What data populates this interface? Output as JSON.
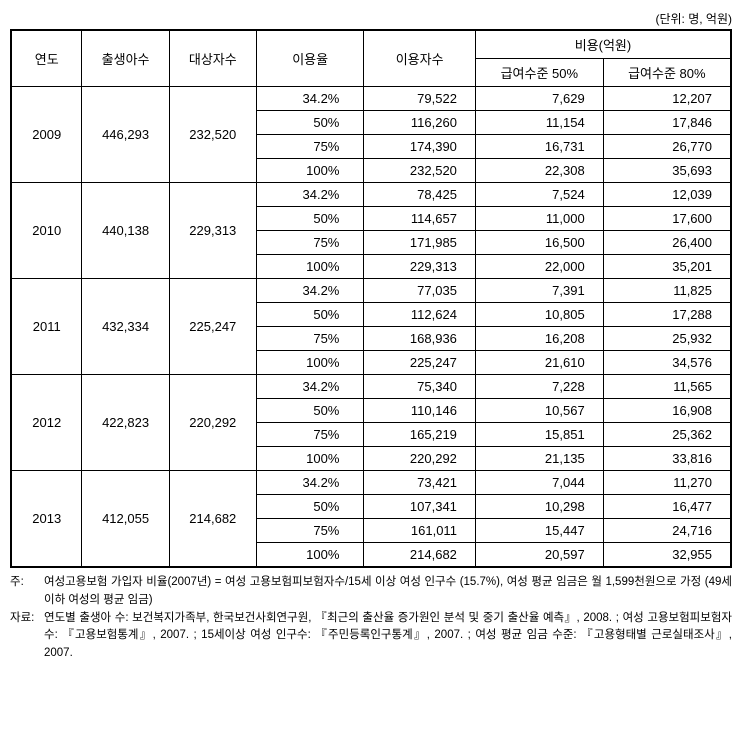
{
  "unit_label": "(단위: 명, 억원)",
  "headers": {
    "year": "연도",
    "births": "출생아수",
    "targets": "대상자수",
    "usage_rate": "이용율",
    "users": "이용자수",
    "cost_group": "비용(억원)",
    "cost_50": "급여수준 50%",
    "cost_80": "급여수준 80%"
  },
  "col_widths": {
    "year": "70",
    "births": "86",
    "targets": "86",
    "rate": "106",
    "users": "110",
    "cost50": "126",
    "cost80": "126"
  },
  "years": [
    {
      "year": "2009",
      "births": "446,293",
      "targets": "232,520",
      "rows": [
        {
          "rate": "34.2%",
          "users": "79,522",
          "c50": "7,629",
          "c80": "12,207"
        },
        {
          "rate": "50%",
          "users": "116,260",
          "c50": "11,154",
          "c80": "17,846"
        },
        {
          "rate": "75%",
          "users": "174,390",
          "c50": "16,731",
          "c80": "26,770"
        },
        {
          "rate": "100%",
          "users": "232,520",
          "c50": "22,308",
          "c80": "35,693"
        }
      ]
    },
    {
      "year": "2010",
      "births": "440,138",
      "targets": "229,313",
      "rows": [
        {
          "rate": "34.2%",
          "users": "78,425",
          "c50": "7,524",
          "c80": "12,039"
        },
        {
          "rate": "50%",
          "users": "114,657",
          "c50": "11,000",
          "c80": "17,600"
        },
        {
          "rate": "75%",
          "users": "171,985",
          "c50": "16,500",
          "c80": "26,400"
        },
        {
          "rate": "100%",
          "users": "229,313",
          "c50": "22,000",
          "c80": "35,201"
        }
      ]
    },
    {
      "year": "2011",
      "births": "432,334",
      "targets": "225,247",
      "rows": [
        {
          "rate": "34.2%",
          "users": "77,035",
          "c50": "7,391",
          "c80": "11,825"
        },
        {
          "rate": "50%",
          "users": "112,624",
          "c50": "10,805",
          "c80": "17,288"
        },
        {
          "rate": "75%",
          "users": "168,936",
          "c50": "16,208",
          "c80": "25,932"
        },
        {
          "rate": "100%",
          "users": "225,247",
          "c50": "21,610",
          "c80": "34,576"
        }
      ]
    },
    {
      "year": "2012",
      "births": "422,823",
      "targets": "220,292",
      "rows": [
        {
          "rate": "34.2%",
          "users": "75,340",
          "c50": "7,228",
          "c80": "11,565"
        },
        {
          "rate": "50%",
          "users": "110,146",
          "c50": "10,567",
          "c80": "16,908"
        },
        {
          "rate": "75%",
          "users": "165,219",
          "c50": "15,851",
          "c80": "25,362"
        },
        {
          "rate": "100%",
          "users": "220,292",
          "c50": "21,135",
          "c80": "33,816"
        }
      ]
    },
    {
      "year": "2013",
      "births": "412,055",
      "targets": "214,682",
      "rows": [
        {
          "rate": "34.2%",
          "users": "73,421",
          "c50": "7,044",
          "c80": "11,270"
        },
        {
          "rate": "50%",
          "users": "107,341",
          "c50": "10,298",
          "c80": "16,477"
        },
        {
          "rate": "75%",
          "users": "161,011",
          "c50": "15,447",
          "c80": "24,716"
        },
        {
          "rate": "100%",
          "users": "214,682",
          "c50": "20,597",
          "c80": "32,955"
        }
      ]
    }
  ],
  "notes": {
    "note_label": "주:",
    "note_text": "여성고용보험 가입자 비율(2007년) = 여성 고용보험피보험자수/15세 이상 여성 인구수 (15.7%), 여성 평균 임금은 월 1,599천원으로 가정 (49세 이하 여성의 평균 임금)",
    "source_label": "자료:",
    "source_text": "연도별 출생아 수: 보건복지가족부, 한국보건사회연구원, 『최근의 출산율 증가원인 분석 및 중기 출산율 예측』, 2008. ; 여성 고용보험피보험자수: 『고용보험통계』, 2007. ; 15세이상 여성 인구수: 『주민등록인구통계』, 2007. ; 여성 평균 임금 수준: 『고용형태별 근로실태조사』, 2007."
  }
}
